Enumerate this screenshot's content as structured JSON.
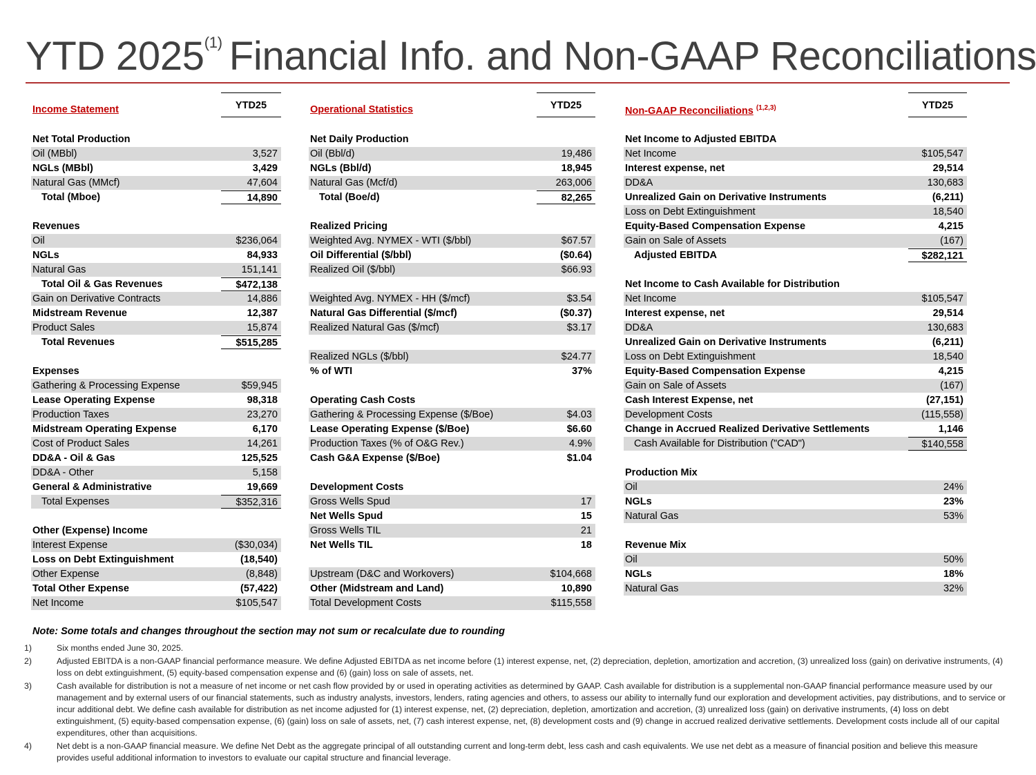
{
  "title": {
    "before": "YTD 2025",
    "superscript": "(1)",
    "after": "Financial Info. and Non-GAAP Reconciliations"
  },
  "panels": [
    {
      "title": "Income Statement",
      "column": "YTD25",
      "sections": [
        {
          "heading": "Net Total Production",
          "rows": [
            {
              "label": "Oil (MBbl)",
              "value": "3,527"
            },
            {
              "label": "NGLs (MBbl)",
              "value": "3,429",
              "bold": true
            },
            {
              "label": "Natural Gas (MMcf)",
              "value": "47,604"
            },
            {
              "label": "Total (Mboe)",
              "value": "14,890",
              "bold": true,
              "total": true
            }
          ]
        },
        {
          "heading": "Revenues",
          "rows": [
            {
              "label": "Oil",
              "value": "$236,064"
            },
            {
              "label": "NGLs",
              "value": "84,933",
              "bold": true
            },
            {
              "label": "Natural Gas",
              "value": "151,141"
            },
            {
              "label": "Total Oil & Gas Revenues",
              "value": "$472,138",
              "bold": true,
              "total": true
            },
            {
              "label": "Gain on Derivative Contracts",
              "value": "14,886"
            },
            {
              "label": "Midstream Revenue",
              "value": "12,387",
              "bold": true
            },
            {
              "label": "Product Sales",
              "value": "15,874"
            },
            {
              "label": "Total Revenues",
              "value": "$515,285",
              "bold": true,
              "total": true
            }
          ]
        },
        {
          "heading": "Expenses",
          "rows": [
            {
              "label": "Gathering & Processing Expense",
              "value": "$59,945"
            },
            {
              "label": "Lease Operating Expense",
              "value": "98,318",
              "bold": true
            },
            {
              "label": "Production Taxes",
              "value": "23,270"
            },
            {
              "label": "Midstream Operating Expense",
              "value": "6,170",
              "bold": true
            },
            {
              "label": "Cost of Product Sales",
              "value": "14,261"
            },
            {
              "label": "DD&A - Oil & Gas",
              "value": "125,525",
              "bold": true
            },
            {
              "label": "DD&A - Other",
              "value": "5,158"
            },
            {
              "label": "General & Administrative",
              "value": "19,669",
              "bold": true
            },
            {
              "label": "Total Expenses",
              "value": "$352,316",
              "total": true
            }
          ]
        },
        {
          "heading": "Other (Expense) Income",
          "rows": [
            {
              "label": "Interest Expense",
              "value": "($30,034)"
            },
            {
              "label": "Loss on Debt Extinguishment",
              "value": "(18,540)",
              "bold": true
            },
            {
              "label": "Other Expense",
              "value": "(8,848)"
            },
            {
              "label": "Total Other Expense",
              "value": "(57,422)",
              "bold": true
            },
            {
              "label": "Net Income",
              "value": "$105,547"
            }
          ]
        }
      ]
    },
    {
      "title": "Operational Statistics",
      "column": "YTD25",
      "sections": [
        {
          "heading": "Net Daily Production",
          "rows": [
            {
              "label": "Oil (Bbl/d)",
              "value": "19,486"
            },
            {
              "label": "NGLs (Bbl/d)",
              "value": "18,945",
              "bold": true
            },
            {
              "label": "Natural Gas (Mcf/d)",
              "value": "263,006"
            },
            {
              "label": "Total (Boe/d)",
              "value": "82,265",
              "bold": true,
              "total": true
            }
          ]
        },
        {
          "heading": "Realized Pricing",
          "rows": [
            {
              "label": "Weighted Avg. NYMEX - WTI ($/bbl)",
              "value": "$67.57"
            },
            {
              "label": "Oil Differential ($/bbl)",
              "value": "($0.64)",
              "bold": true
            },
            {
              "label": "Realized Oil ($/bbl)",
              "value": "$66.93"
            }
          ]
        },
        {
          "rows": [
            {
              "label": "Weighted Avg. NYMEX - HH ($/mcf)",
              "value": "$3.54"
            },
            {
              "label": "Natural Gas Differential ($/mcf)",
              "value": "($0.37)",
              "bold": true
            },
            {
              "label": "Realized Natural Gas ($/mcf)",
              "value": "$3.17"
            }
          ]
        },
        {
          "rows": [
            {
              "label": "Realized NGLs ($/bbl)",
              "value": "$24.77"
            },
            {
              "label": "% of WTI",
              "value": "37%",
              "bold": true
            }
          ]
        },
        {
          "heading": "Operating Cash Costs",
          "rows": [
            {
              "label": "Gathering & Processing Expense ($/Boe)",
              "value": "$4.03"
            },
            {
              "label": "Lease Operating Expense ($/Boe)",
              "value": "$6.60",
              "bold": true
            },
            {
              "label": "Production Taxes (% of O&G Rev.)",
              "value": "4.9%"
            },
            {
              "label": "Cash G&A Expense ($/Boe)",
              "value": "$1.04",
              "bold": true
            }
          ]
        },
        {
          "heading": "Development Costs",
          "rows": [
            {
              "label": "Gross Wells Spud",
              "value": "17"
            },
            {
              "label": "Net Wells Spud",
              "value": "15",
              "bold": true
            },
            {
              "label": "Gross Wells TIL",
              "value": "21"
            },
            {
              "label": "Net Wells TIL",
              "value": "18",
              "bold": true
            }
          ]
        },
        {
          "rows": [
            {
              "label": "Upstream (D&C and Workovers)",
              "value": "$104,668"
            },
            {
              "label": "Other (Midstream and Land)",
              "value": "10,890",
              "bold": true
            },
            {
              "label": "Total Development Costs",
              "value": "$115,558"
            }
          ]
        }
      ]
    },
    {
      "title": "Non-GAAP Reconciliations",
      "title_superscript": "(1,2,3)",
      "column": "YTD25",
      "sections": [
        {
          "heading": "Net Income to Adjusted EBITDA",
          "rows": [
            {
              "label": "Net Income",
              "value": "$105,547"
            },
            {
              "label": "Interest expense, net",
              "value": "29,514",
              "bold": true
            },
            {
              "label": "DD&A",
              "value": "130,683"
            },
            {
              "label": "Unrealized Gain on Derivative Instruments",
              "value": "(6,211)",
              "bold": true
            },
            {
              "label": "Loss on Debt Extinguishment",
              "value": "18,540"
            },
            {
              "label": "Equity-Based Compensation Expense",
              "value": "4,215",
              "bold": true
            },
            {
              "label": "Gain on Sale of Assets",
              "value": "(167)"
            },
            {
              "label": "Adjusted EBITDA",
              "value": "$282,121",
              "bold": true,
              "total": true
            }
          ]
        },
        {
          "heading": "Net Income to Cash Available for Distribution",
          "rows": [
            {
              "label": "Net Income",
              "value": "$105,547"
            },
            {
              "label": "Interest expense, net",
              "value": "29,514",
              "bold": true
            },
            {
              "label": "DD&A",
              "value": "130,683"
            },
            {
              "label": "Unrealized Gain on Derivative Instruments",
              "value": "(6,211)",
              "bold": true
            },
            {
              "label": "Loss on Debt Extinguishment",
              "value": "18,540"
            },
            {
              "label": "Equity-Based Compensation Expense",
              "value": "4,215",
              "bold": true
            },
            {
              "label": "Gain on Sale of Assets",
              "value": "(167)"
            },
            {
              "label": "Cash Interest Expense, net",
              "value": "(27,151)",
              "bold": true
            },
            {
              "label": "Development Costs",
              "value": "(115,558)"
            },
            {
              "label": "Change in Accrued Realized Derivative Settlements",
              "value": "1,146",
              "bold": true
            },
            {
              "label": "Cash Available for Distribution (\"CAD\")",
              "value": "$140,558",
              "total": true
            }
          ]
        },
        {
          "heading": "Production Mix",
          "rows": [
            {
              "label": "Oil",
              "value": "24%"
            },
            {
              "label": "NGLs",
              "value": "23%",
              "bold": true
            },
            {
              "label": "Natural Gas",
              "value": "53%"
            }
          ]
        },
        {
          "heading": "Revenue Mix",
          "rows": [
            {
              "label": "Oil",
              "value": "50%"
            },
            {
              "label": "NGLs",
              "value": "18%",
              "bold": true
            },
            {
              "label": "Natural Gas",
              "value": "32%"
            }
          ]
        }
      ]
    }
  ],
  "note": "Note: Some totals and changes throughout the section may not sum or recalculate due to rounding",
  "footnotes": [
    {
      "number": "1)",
      "text": "Six months ended June 30, 2025."
    },
    {
      "number": "2)",
      "text": "Adjusted EBITDA is a non-GAAP financial performance measure. We define Adjusted EBITDA as net income before (1) interest expense, net, (2) depreciation, depletion, amortization and accretion, (3) unrealized loss (gain) on derivative instruments, (4) loss on debt extinguishment, (5) equity-based compensation expense and (6) (gain) loss on sale of assets, net."
    },
    {
      "number": "3)",
      "text": "Cash available for distribution is not a measure of net income or net cash flow provided by or used in operating activities as determined by GAAP. Cash available for distribution is a supplemental non-GAAP financial performance measure used by our management and by external users of our financial statements, such as industry analysts, investors, lenders, rating agencies and others, to assess our ability to internally fund our exploration and development activities, pay distributions, and to service or incur additional debt. We define cash available for distribution as net income adjusted for (1) interest expense, net, (2) depreciation, depletion, amortization and accretion, (3) unrealized loss (gain) on derivative instruments, (4) loss on debt extinguishment, (5) equity-based compensation expense, (6) (gain) loss on sale of assets, net, (7) cash interest expense, net, (8) development costs and (9) change in accrued realized derivative settlements. Development costs include all of our capital expenditures, other than acquisitions."
    },
    {
      "number": "4)",
      "text": "Net debt is a non-GAAP financial measure. We define Net Debt as the aggregate principal of all outstanding current and long-term debt, less cash and cash equivalents. We use net debt as a measure of financial position and believe this measure provides useful additional information to investors to evaluate our capital structure and financial leverage."
    }
  ]
}
